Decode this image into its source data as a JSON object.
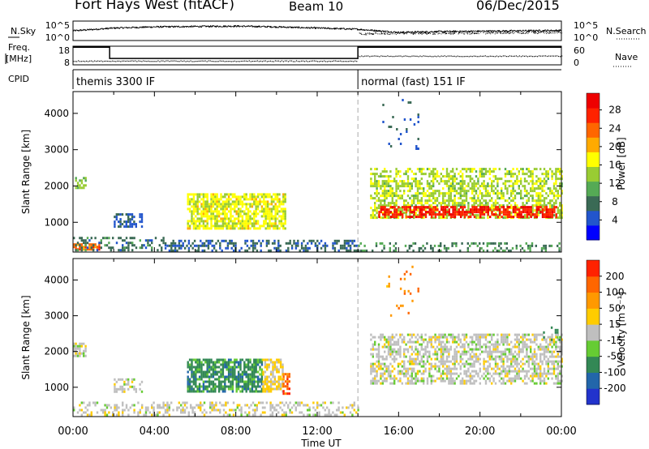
{
  "header": {
    "station": "Fort Hays West (fitACF)",
    "beam": "Beam 10",
    "date": "06/Dec/2015"
  },
  "chart_data": [
    {
      "type": "line",
      "name": "noise-panel",
      "left_label": "N.Sky",
      "right_label": "N.Search",
      "left_ticks": [
        "10^5",
        "10^0"
      ],
      "right_ticks": [
        "10^5",
        "10^0"
      ],
      "xlim": [
        0,
        24
      ],
      "series": [
        {
          "name": "N.Sky",
          "style": "solid",
          "x": [
            0,
            2,
            4,
            6,
            8,
            10,
            12,
            14,
            16,
            18,
            20,
            22,
            24
          ],
          "values": [
            2.5,
            3.2,
            3.5,
            3.6,
            3.7,
            3.5,
            3.2,
            2.9,
            2.1,
            2.3,
            2.4,
            2.5,
            2.6
          ]
        },
        {
          "name": "N.Search",
          "style": "dotted",
          "x": [
            14,
            16,
            18,
            20,
            22,
            24
          ],
          "values": [
            1.8,
            1.9,
            2.0,
            2.0,
            2.1,
            2.2
          ]
        }
      ]
    },
    {
      "type": "line",
      "name": "freq-panel",
      "left_label": "Freq. [MHz]",
      "right_label": "Nave",
      "left_ticks": [
        "18",
        "8"
      ],
      "right_ticks": [
        "60",
        "0"
      ],
      "xlim": [
        0,
        24
      ],
      "series": [
        {
          "name": "Freq",
          "x": [
            0,
            1.8,
            1.8,
            14,
            14,
            24
          ],
          "values": [
            17,
            17,
            11,
            11,
            17,
            17
          ]
        },
        {
          "name": "Nave",
          "style": "dotted",
          "x": [
            0,
            14,
            14,
            24
          ],
          "values": [
            12,
            12,
            28,
            28
          ]
        }
      ]
    },
    {
      "type": "table",
      "name": "cpid-panel",
      "label": "CPID",
      "segments": [
        {
          "start": 0,
          "end": 14,
          "text": "themis 3300 IF"
        },
        {
          "start": 14,
          "end": 24,
          "text": "normal (fast) 151 IF"
        }
      ]
    },
    {
      "type": "heatmap",
      "name": "power-panel",
      "ylabel": "Slant Range [km]",
      "yticks": [
        1000,
        2000,
        3000,
        4000
      ],
      "ylim": [
        180,
        4600
      ],
      "xlim": [
        0,
        24
      ],
      "colorbar": {
        "label": "Power [dB]",
        "ticks": [
          "4",
          "8",
          "12",
          "16",
          "20",
          "24",
          "28"
        ],
        "colors": [
          "#0000ff",
          "#2255cc",
          "#3a6a55",
          "#55aa55",
          "#99cc33",
          "#ffff00",
          "#ffaa00",
          "#ff6600",
          "#ff2200",
          "#ee0000"
        ],
        "vmin": 0,
        "vmax": 32
      },
      "scatter_regions": [
        {
          "t0": 0.1,
          "t1": 0.6,
          "r0": 1950,
          "r1": 2250,
          "value": 14,
          "density": 0.8
        },
        {
          "t0": 0.0,
          "t1": 1.3,
          "r0": 220,
          "r1": 420,
          "value": 24,
          "density": 0.9
        },
        {
          "t0": 0.0,
          "t1": 4.5,
          "r0": 200,
          "r1": 600,
          "value": 8,
          "density": 0.35
        },
        {
          "t0": 4.5,
          "t1": 14.0,
          "r0": 200,
          "r1": 520,
          "value": 7,
          "density": 0.45
        },
        {
          "t0": 2.0,
          "t1": 3.4,
          "r0": 900,
          "r1": 1250,
          "value": 6,
          "density": 0.5
        },
        {
          "t0": 5.6,
          "t1": 10.4,
          "r0": 850,
          "r1": 1800,
          "value": 17,
          "density": 0.75
        },
        {
          "t0": 14.6,
          "t1": 24.0,
          "r0": 1100,
          "r1": 2500,
          "value": 15,
          "density": 0.55
        },
        {
          "t0": 15.0,
          "t1": 23.8,
          "r0": 1150,
          "r1": 1450,
          "value": 28,
          "density": 0.65
        },
        {
          "t0": 14.0,
          "t1": 24.0,
          "r0": 200,
          "r1": 450,
          "value": 9,
          "density": 0.3
        },
        {
          "t0": 15.2,
          "t1": 17.0,
          "r0": 3000,
          "r1": 4400,
          "value": 6,
          "density": 0.06
        }
      ],
      "markers": [
        14
      ]
    },
    {
      "type": "heatmap",
      "name": "velocity-panel",
      "ylabel": "Slant Range [km]",
      "yticks": [
        1000,
        2000,
        3000,
        4000
      ],
      "ylim": [
        180,
        4600
      ],
      "xlim": [
        0,
        24
      ],
      "xticks": [
        "00:00",
        "04:00",
        "08:00",
        "12:00",
        "16:00",
        "20:00",
        "00:00"
      ],
      "xlabel": "Time UT",
      "colorbar": {
        "label": "Velocity [m s⁻¹]",
        "ticks": [
          "200",
          "100",
          "50",
          "15",
          "-15",
          "-50",
          "-100",
          "-200"
        ],
        "colors": [
          "#2233cc",
          "#2266aa",
          "#338855",
          "#66cc33",
          "#bfbfbf",
          "#ffcc00",
          "#ff9900",
          "#ff6600",
          "#ff2200"
        ],
        "vmin": -250,
        "vmax": 250
      },
      "scatter_regions": [
        {
          "t0": 0.0,
          "t1": 0.6,
          "r0": 1900,
          "r1": 2250,
          "value": 0,
          "density": 0.7
        },
        {
          "t0": 0.0,
          "t1": 14.0,
          "r0": 200,
          "r1": 600,
          "value": 5,
          "density": 0.35
        },
        {
          "t0": 2.0,
          "t1": 3.4,
          "r0": 900,
          "r1": 1250,
          "value": 0,
          "density": 0.4
        },
        {
          "t0": 5.6,
          "t1": 9.3,
          "r0": 850,
          "r1": 1800,
          "value": -110,
          "density": 0.75
        },
        {
          "t0": 9.3,
          "t1": 10.3,
          "r0": 850,
          "r1": 1800,
          "value": 40,
          "density": 0.7
        },
        {
          "t0": 10.3,
          "t1": 10.6,
          "r0": 850,
          "r1": 1400,
          "value": 170,
          "density": 0.7
        },
        {
          "t0": 14.6,
          "t1": 24.0,
          "r0": 1100,
          "r1": 2500,
          "value": 0,
          "density": 0.55
        },
        {
          "t0": 23.0,
          "t1": 24.0,
          "r0": 2300,
          "r1": 2700,
          "value": -110,
          "density": 0.15
        },
        {
          "t0": 15.2,
          "t1": 17.0,
          "r0": 3000,
          "r1": 4400,
          "value": 120,
          "density": 0.05
        }
      ],
      "markers": [
        14
      ]
    }
  ]
}
